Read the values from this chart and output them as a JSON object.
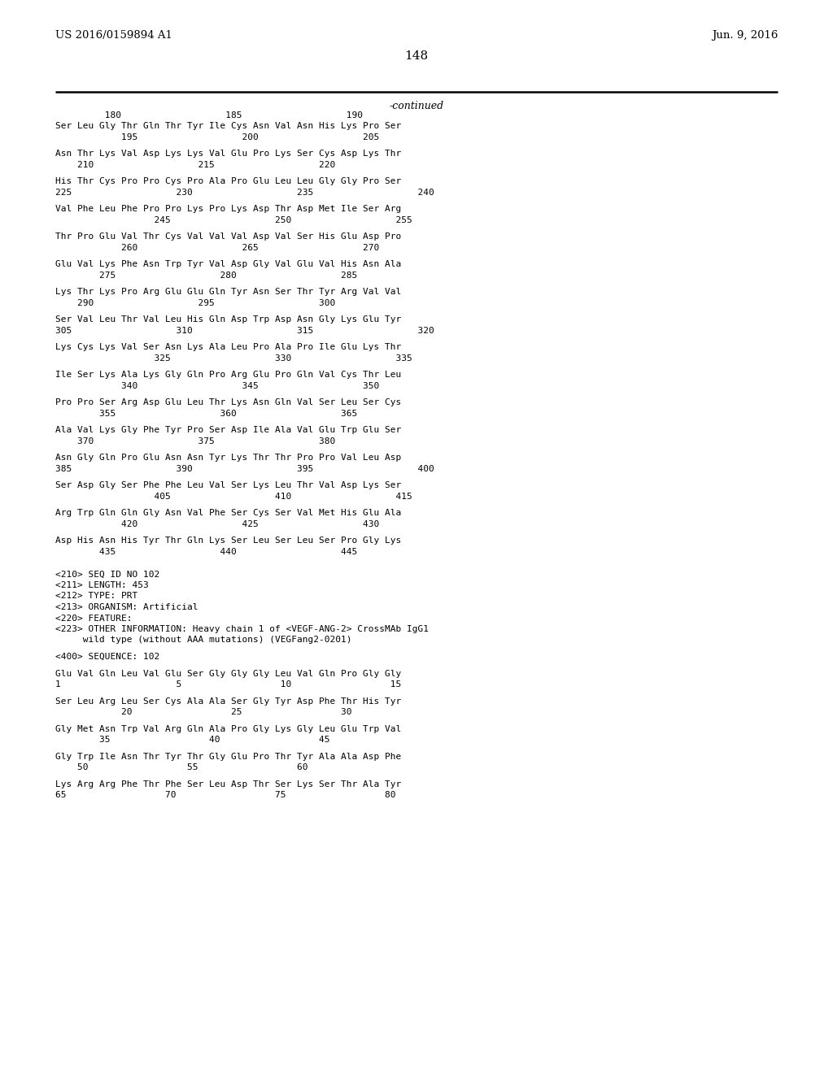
{
  "header_left": "US 2016/0159894 A1",
  "header_right": "Jun. 9, 2016",
  "page_number": "148",
  "continued_label": "-continued",
  "background_color": "#ffffff",
  "text_color": "#000000",
  "lines": [
    {
      "type": "ruler",
      "text": "         180                   185                   190"
    },
    {
      "type": "seq",
      "text": "Ser Leu Gly Thr Gln Thr Tyr Ile Cys Asn Val Asn His Lys Pro Ser"
    },
    {
      "type": "pos",
      "text": "            195                   200                   205"
    },
    {
      "type": "blank"
    },
    {
      "type": "seq",
      "text": "Asn Thr Lys Val Asp Lys Lys Val Glu Pro Lys Ser Cys Asp Lys Thr"
    },
    {
      "type": "pos",
      "text": "    210                   215                   220"
    },
    {
      "type": "blank"
    },
    {
      "type": "seq",
      "text": "His Thr Cys Pro Pro Cys Pro Ala Pro Glu Leu Leu Gly Gly Pro Ser"
    },
    {
      "type": "pos",
      "text": "225                   230                   235                   240"
    },
    {
      "type": "blank"
    },
    {
      "type": "seq",
      "text": "Val Phe Leu Phe Pro Pro Lys Pro Lys Asp Thr Asp Met Ile Ser Arg"
    },
    {
      "type": "pos",
      "text": "                  245                   250                   255"
    },
    {
      "type": "blank"
    },
    {
      "type": "seq",
      "text": "Thr Pro Glu Val Thr Cys Val Val Val Asp Val Ser His Glu Asp Pro"
    },
    {
      "type": "pos",
      "text": "            260                   265                   270"
    },
    {
      "type": "blank"
    },
    {
      "type": "seq",
      "text": "Glu Val Lys Phe Asn Trp Tyr Val Asp Gly Val Glu Val His Asn Ala"
    },
    {
      "type": "pos",
      "text": "        275                   280                   285"
    },
    {
      "type": "blank"
    },
    {
      "type": "seq",
      "text": "Lys Thr Lys Pro Arg Glu Glu Gln Tyr Asn Ser Thr Tyr Arg Val Val"
    },
    {
      "type": "pos",
      "text": "    290                   295                   300"
    },
    {
      "type": "blank"
    },
    {
      "type": "seq",
      "text": "Ser Val Leu Thr Val Leu His Gln Asp Trp Asp Asn Gly Lys Glu Tyr"
    },
    {
      "type": "pos",
      "text": "305                   310                   315                   320"
    },
    {
      "type": "blank"
    },
    {
      "type": "seq",
      "text": "Lys Cys Lys Val Ser Asn Lys Ala Leu Pro Ala Pro Ile Glu Lys Thr"
    },
    {
      "type": "pos",
      "text": "                  325                   330                   335"
    },
    {
      "type": "blank"
    },
    {
      "type": "seq",
      "text": "Ile Ser Lys Ala Lys Gly Gln Pro Arg Glu Pro Gln Val Cys Thr Leu"
    },
    {
      "type": "pos",
      "text": "            340                   345                   350"
    },
    {
      "type": "blank"
    },
    {
      "type": "seq",
      "text": "Pro Pro Ser Arg Asp Glu Leu Thr Lys Asn Gln Val Ser Leu Ser Cys"
    },
    {
      "type": "pos",
      "text": "        355                   360                   365"
    },
    {
      "type": "blank"
    },
    {
      "type": "seq",
      "text": "Ala Val Lys Gly Phe Tyr Pro Ser Asp Ile Ala Val Glu Trp Glu Ser"
    },
    {
      "type": "pos",
      "text": "    370                   375                   380"
    },
    {
      "type": "blank"
    },
    {
      "type": "seq",
      "text": "Asn Gly Gln Pro Glu Asn Asn Tyr Lys Thr Thr Pro Pro Val Leu Asp"
    },
    {
      "type": "pos",
      "text": "385                   390                   395                   400"
    },
    {
      "type": "blank"
    },
    {
      "type": "seq",
      "text": "Ser Asp Gly Ser Phe Phe Leu Val Ser Lys Leu Thr Val Asp Lys Ser"
    },
    {
      "type": "pos",
      "text": "                  405                   410                   415"
    },
    {
      "type": "blank"
    },
    {
      "type": "seq",
      "text": "Arg Trp Gln Gln Gly Asn Val Phe Ser Cys Ser Val Met His Glu Ala"
    },
    {
      "type": "pos",
      "text": "            420                   425                   430"
    },
    {
      "type": "blank"
    },
    {
      "type": "seq",
      "text": "Asp His Asn His Tyr Thr Gln Lys Ser Leu Ser Leu Ser Pro Gly Lys"
    },
    {
      "type": "pos",
      "text": "        435                   440                   445"
    },
    {
      "type": "blank"
    },
    {
      "type": "blank"
    },
    {
      "type": "meta",
      "text": "<210> SEQ ID NO 102"
    },
    {
      "type": "meta",
      "text": "<211> LENGTH: 453"
    },
    {
      "type": "meta",
      "text": "<212> TYPE: PRT"
    },
    {
      "type": "meta",
      "text": "<213> ORGANISM: Artificial"
    },
    {
      "type": "meta",
      "text": "<220> FEATURE:"
    },
    {
      "type": "meta",
      "text": "<223> OTHER INFORMATION: Heavy chain 1 of <VEGF-ANG-2> CrossMAb IgG1"
    },
    {
      "type": "meta",
      "text": "     wild type (without AAA mutations) (VEGFang2-0201)"
    },
    {
      "type": "blank"
    },
    {
      "type": "meta",
      "text": "<400> SEQUENCE: 102"
    },
    {
      "type": "blank"
    },
    {
      "type": "seq",
      "text": "Glu Val Gln Leu Val Glu Ser Gly Gly Gly Leu Val Gln Pro Gly Gly"
    },
    {
      "type": "pos",
      "text": "1                     5                  10                  15"
    },
    {
      "type": "blank"
    },
    {
      "type": "seq",
      "text": "Ser Leu Arg Leu Ser Cys Ala Ala Ser Gly Tyr Asp Phe Thr His Tyr"
    },
    {
      "type": "pos",
      "text": "            20                  25                  30"
    },
    {
      "type": "blank"
    },
    {
      "type": "seq",
      "text": "Gly Met Asn Trp Val Arg Gln Ala Pro Gly Lys Gly Leu Glu Trp Val"
    },
    {
      "type": "pos",
      "text": "        35                  40                  45"
    },
    {
      "type": "blank"
    },
    {
      "type": "seq",
      "text": "Gly Trp Ile Asn Thr Tyr Thr Gly Glu Pro Thr Tyr Ala Ala Asp Phe"
    },
    {
      "type": "pos",
      "text": "    50                  55                  60"
    },
    {
      "type": "blank"
    },
    {
      "type": "seq",
      "text": "Lys Arg Arg Phe Thr Phe Ser Leu Asp Thr Ser Lys Ser Thr Ala Tyr"
    },
    {
      "type": "pos",
      "text": "65                  70                  75                  80"
    }
  ]
}
